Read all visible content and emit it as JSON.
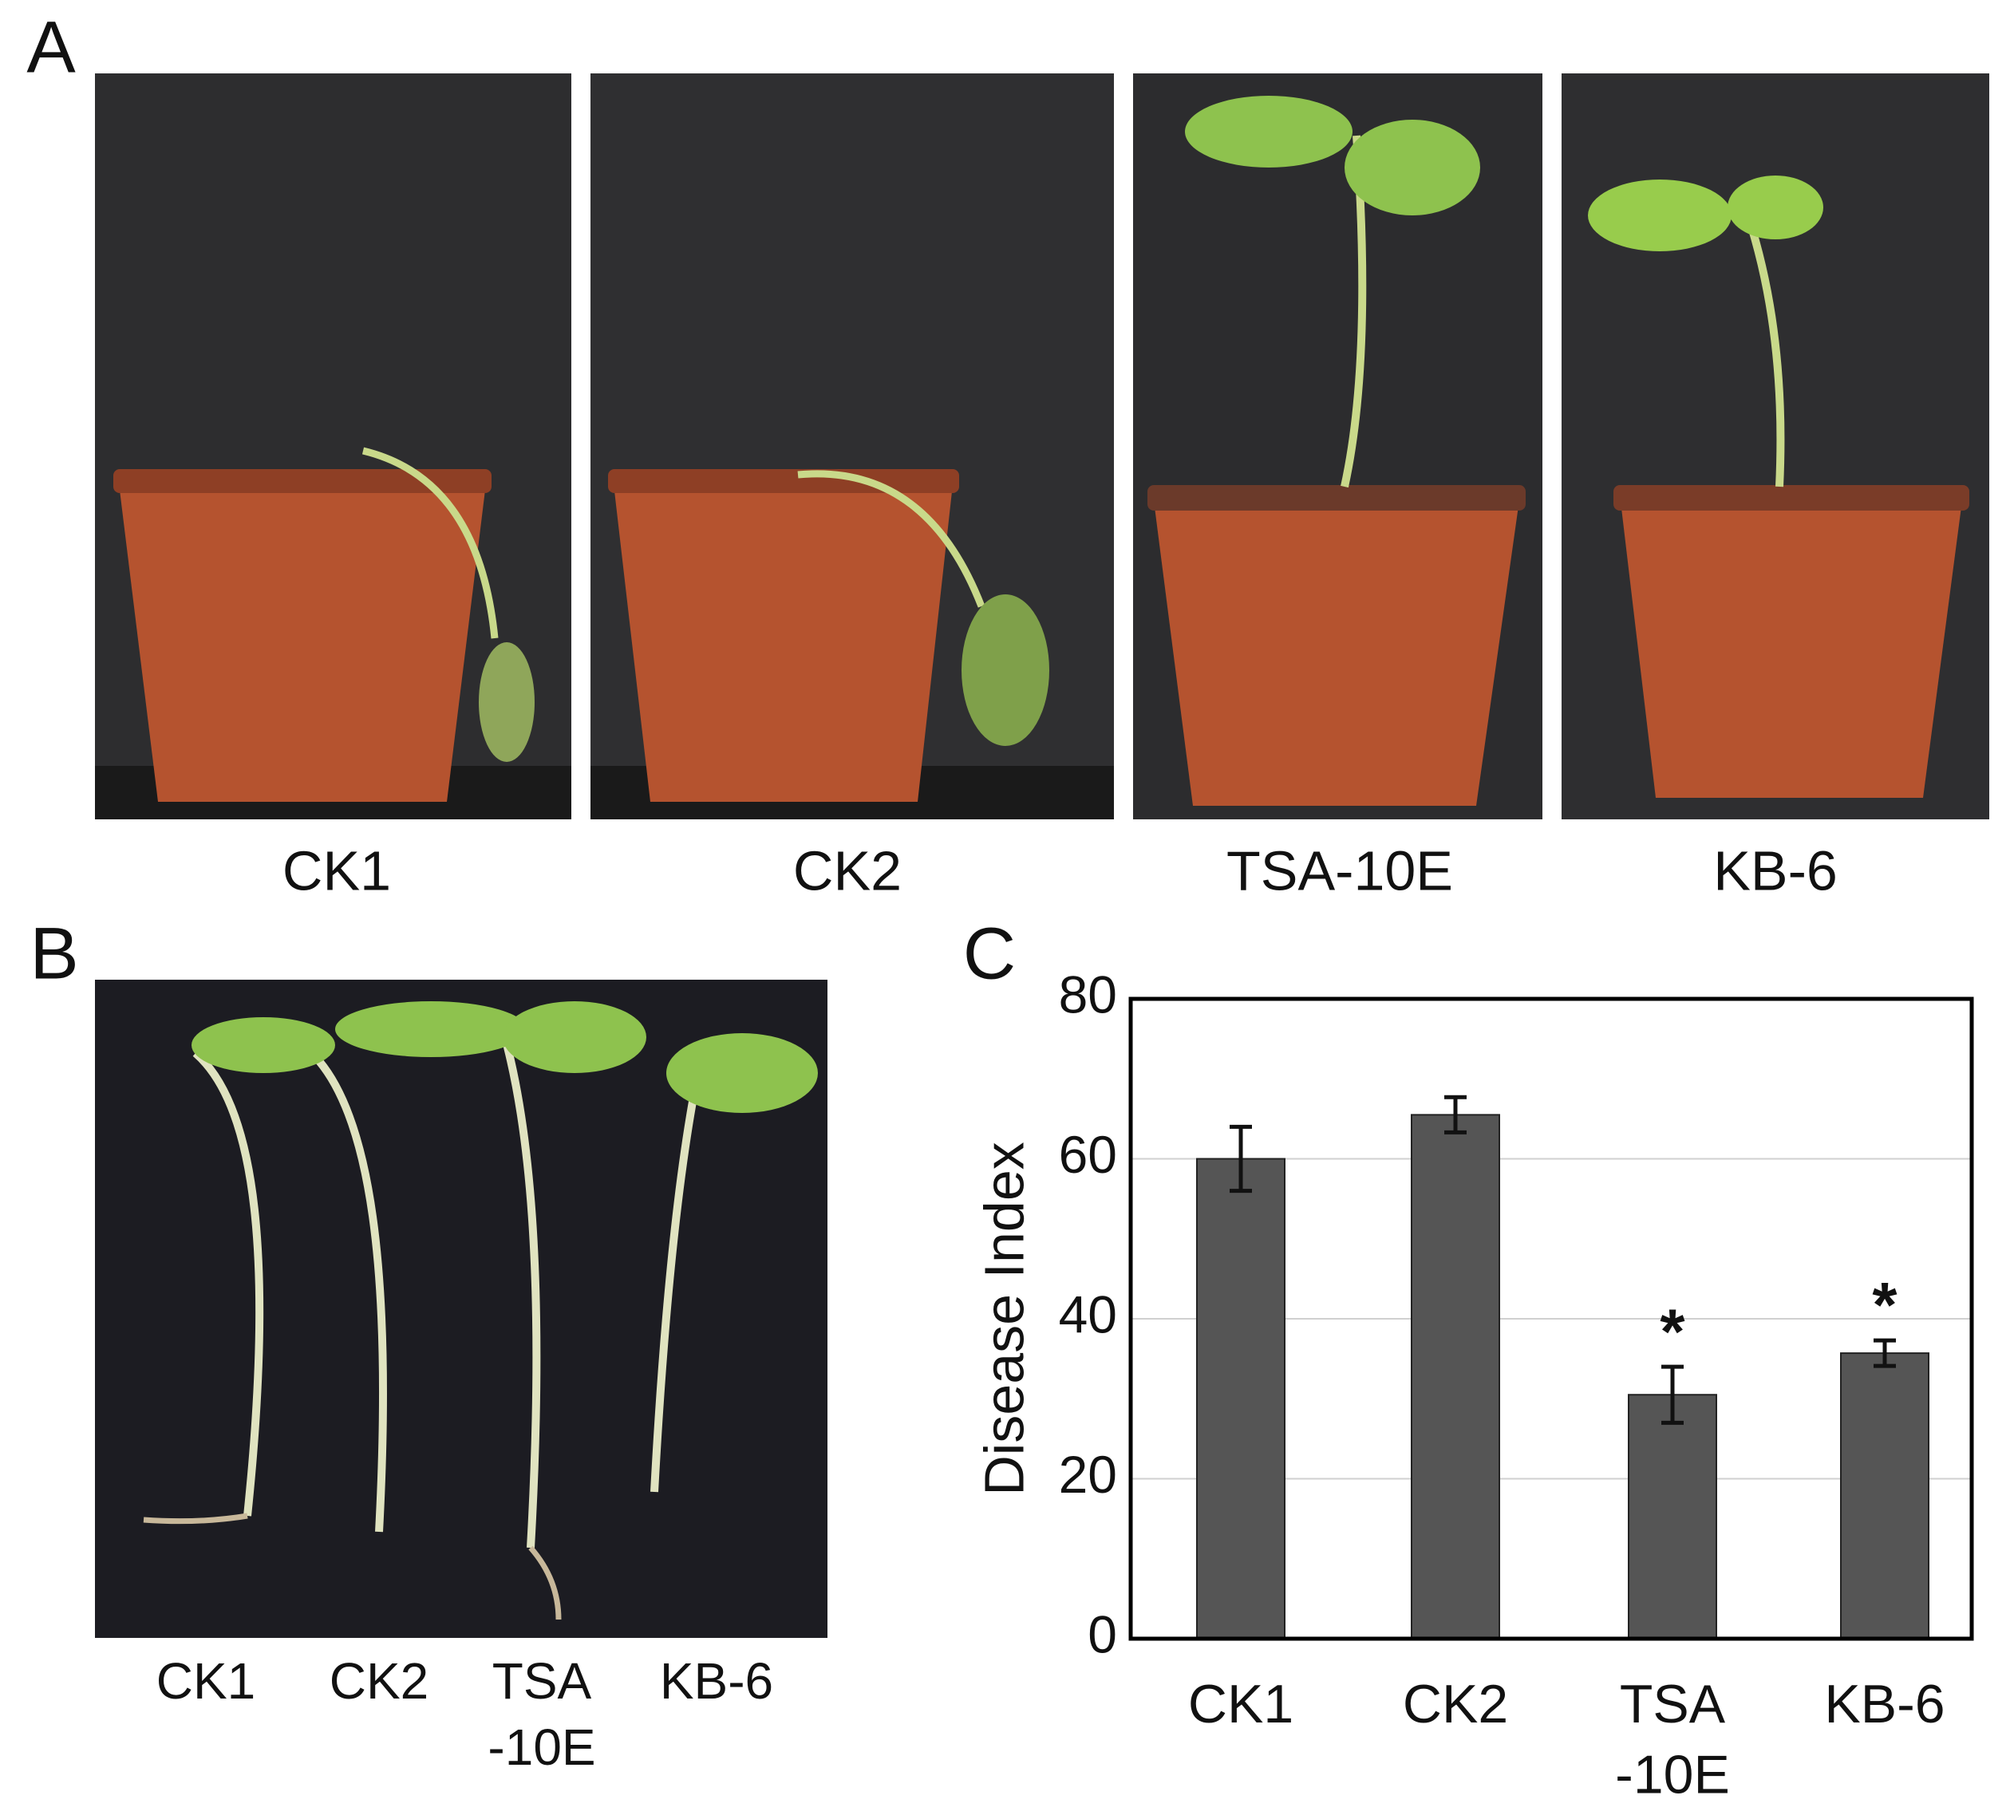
{
  "panel_labels": [
    "A",
    "B",
    "C"
  ],
  "panel_a": {
    "captions": [
      "CK1",
      "CK2",
      "TSA-10E",
      "KB-6"
    ]
  },
  "panel_b": {
    "captions": [
      "CK1",
      "CK2",
      "TSA\n-10E",
      "KB-6"
    ]
  },
  "chart_data": {
    "type": "bar",
    "y_label": "Disease Index",
    "categories": [
      "CK1",
      "CK2",
      "TSA\n-10E",
      "KB-6"
    ],
    "values": [
      60,
      65.5,
      30.5,
      35.7
    ],
    "errors": [
      4,
      2.2,
      3.5,
      1.6
    ],
    "significance_marks": [
      null,
      null,
      "*",
      "*"
    ],
    "color": "#555555",
    "ylim": [
      0,
      80
    ],
    "yticks": [
      0,
      20,
      40,
      60,
      80
    ],
    "grid": true
  }
}
